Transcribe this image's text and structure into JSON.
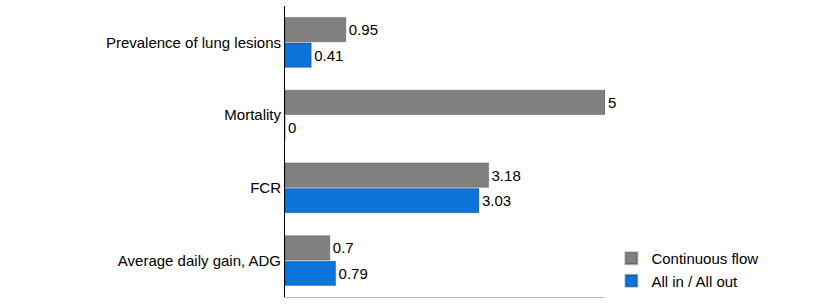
{
  "chart_data": {
    "type": "bar",
    "orientation": "horizontal",
    "categories": [
      "Prevalence of lung lesions",
      "Mortality",
      "FCR",
      "Average daily gain, ADG"
    ],
    "series": [
      {
        "name": "Continuous flow",
        "color": "#808080",
        "values": [
          0.95,
          5,
          3.18,
          0.7
        ]
      },
      {
        "name": "All in / All out",
        "color": "#0a74da",
        "values": [
          0.41,
          0,
          3.03,
          0.79
        ]
      }
    ],
    "xlim": [
      0,
      5
    ],
    "xticks": [],
    "data_labels": true,
    "tick_labels": "y",
    "legend": "lower right",
    "grid": false
  }
}
